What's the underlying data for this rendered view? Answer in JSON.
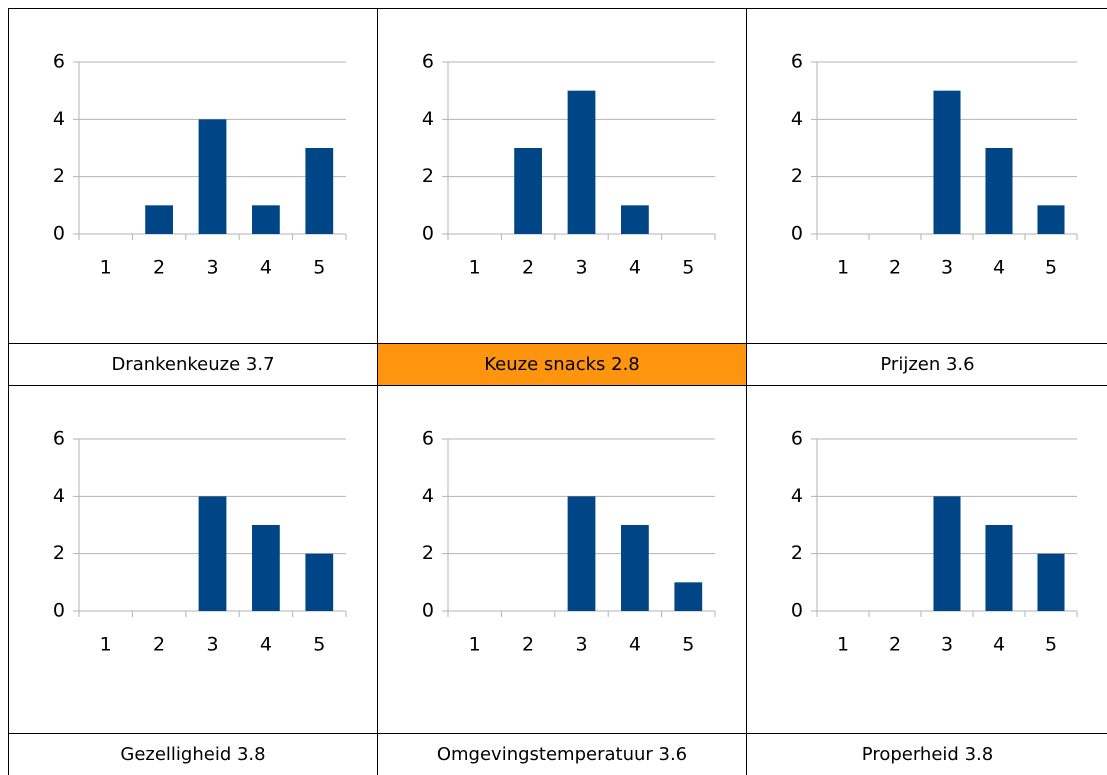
{
  "chart_data": [
    {
      "type": "bar",
      "title": "Drankenkeuze 3.7",
      "categories": [
        "1",
        "2",
        "3",
        "4",
        "5"
      ],
      "values": [
        0,
        1,
        4,
        1,
        3
      ],
      "color": "#004586",
      "ylim": [
        0,
        6
      ],
      "yticks": [
        0,
        2,
        4,
        6
      ],
      "grid": true,
      "title_background": "#ffffff"
    },
    {
      "type": "bar",
      "title": "Keuze snacks 2.8",
      "categories": [
        "1",
        "2",
        "3",
        "4",
        "5"
      ],
      "values": [
        0,
        3,
        5,
        1,
        0
      ],
      "color": "#004586",
      "ylim": [
        0,
        6
      ],
      "yticks": [
        0,
        2,
        4,
        6
      ],
      "grid": true,
      "title_background": "#ff950e"
    },
    {
      "type": "bar",
      "title": "Prijzen 3.6",
      "categories": [
        "1",
        "2",
        "3",
        "4",
        "5"
      ],
      "values": [
        0,
        0,
        5,
        3,
        1
      ],
      "color": "#004586",
      "ylim": [
        0,
        6
      ],
      "yticks": [
        0,
        2,
        4,
        6
      ],
      "grid": true,
      "title_background": "#ffffff"
    },
    {
      "type": "bar",
      "title": "Gezelligheid 3.8",
      "categories": [
        "1",
        "2",
        "3",
        "4",
        "5"
      ],
      "values": [
        0,
        0,
        4,
        3,
        2
      ],
      "color": "#004586",
      "ylim": [
        0,
        6
      ],
      "yticks": [
        0,
        2,
        4,
        6
      ],
      "grid": true,
      "title_background": "#ffffff"
    },
    {
      "type": "bar",
      "title": "Omgevingstemperatuur 3.6",
      "categories": [
        "1",
        "2",
        "3",
        "4",
        "5"
      ],
      "values": [
        0,
        0,
        4,
        3,
        1
      ],
      "color": "#004586",
      "ylim": [
        0,
        6
      ],
      "yticks": [
        0,
        2,
        4,
        6
      ],
      "grid": true,
      "title_background": "#ffffff"
    },
    {
      "type": "bar",
      "title": "Properheid 3.8",
      "categories": [
        "1",
        "2",
        "3",
        "4",
        "5"
      ],
      "values": [
        0,
        0,
        4,
        3,
        2
      ],
      "color": "#004586",
      "ylim": [
        0,
        6
      ],
      "yticks": [
        0,
        2,
        4,
        6
      ],
      "grid": true,
      "title_background": "#ffffff"
    }
  ]
}
